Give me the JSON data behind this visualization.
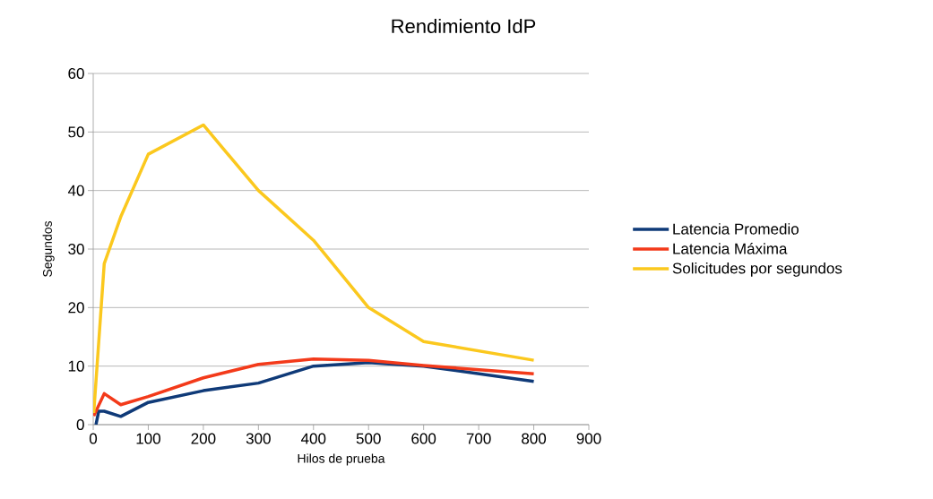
{
  "chart_data": {
    "type": "line",
    "title": "Rendimiento IdP",
    "xlabel": "Hilos de prueba",
    "ylabel": "Segundos",
    "xlim": [
      0,
      900
    ],
    "xticks": [
      0,
      100,
      200,
      300,
      400,
      500,
      600,
      700,
      800,
      900
    ],
    "ylim": [
      0,
      60
    ],
    "yticks": [
      0,
      10,
      20,
      30,
      40,
      50,
      60
    ],
    "grid": "y",
    "legend": "right",
    "marker": "none",
    "line_style": "solid",
    "series": [
      {
        "name": "Latencia Promedio",
        "color": "#0f3a78",
        "x": [
          5,
          10,
          20,
          50,
          100,
          200,
          300,
          400,
          500,
          600,
          800
        ],
        "values": [
          0,
          2.3,
          2.3,
          1.4,
          3.8,
          5.8,
          7.1,
          10,
          10.6,
          10,
          7.4
        ]
      },
      {
        "name": "Latencia Máxima",
        "color": "#f33a1a",
        "x": [
          1,
          20,
          50,
          100,
          200,
          300,
          400,
          500,
          600,
          800
        ],
        "values": [
          1.5,
          5.3,
          3.4,
          4.8,
          8,
          10.3,
          11.2,
          11,
          10.1,
          8.7
        ]
      },
      {
        "name": "Solicitudes por segundos",
        "color": "#fbc81e",
        "x": [
          1,
          20,
          50,
          100,
          200,
          300,
          400,
          500,
          600,
          800
        ],
        "values": [
          2,
          27.5,
          35.5,
          46.2,
          51.2,
          40,
          31.5,
          20,
          14.2,
          11
        ]
      }
    ]
  }
}
